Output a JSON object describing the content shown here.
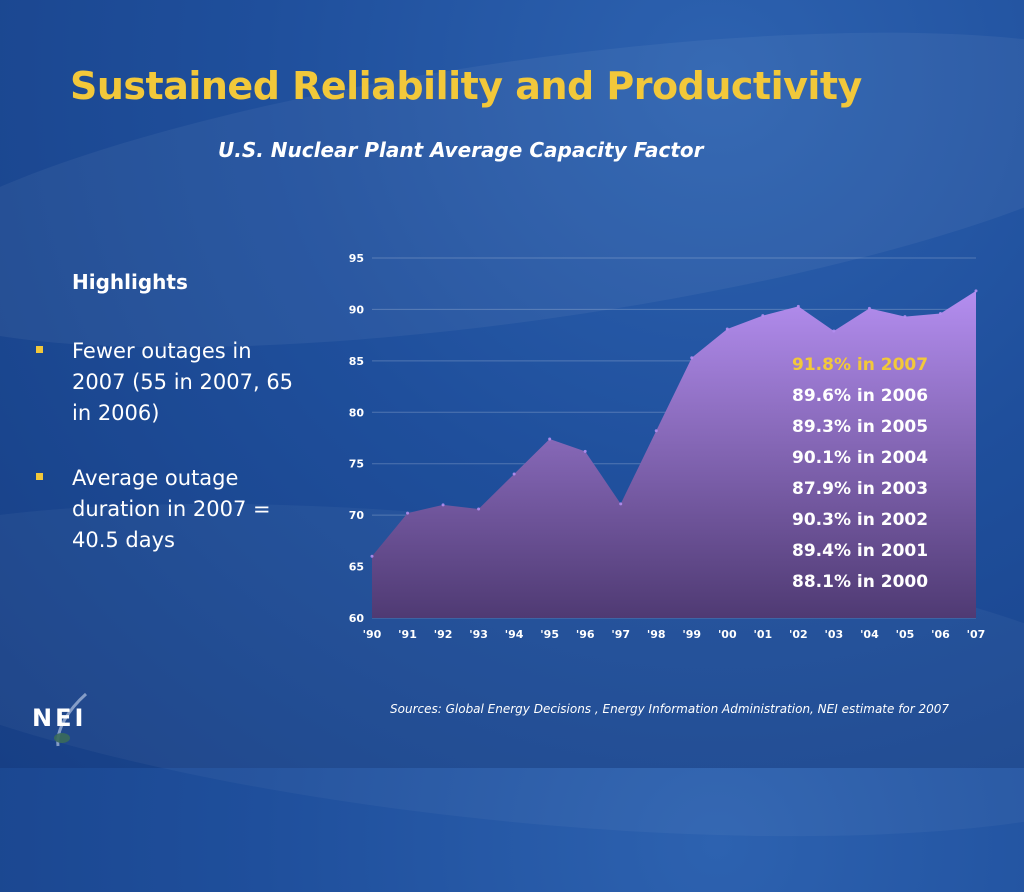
{
  "slide": {
    "title": "Sustained Reliability and Productivity",
    "subtitle": "U.S. Nuclear Plant Average Capacity Factor",
    "highlights_heading": "Highlights",
    "bullets": [
      "Fewer outages in 2007 (55 in 2007, 65 in 2006)",
      "Average outage duration in 2007 = 40.5 days"
    ],
    "callouts": [
      "91.8% in 2007",
      "89.6% in 2006",
      "89.3% in 2005",
      "90.1% in 2004",
      "87.9% in 2003",
      "90.3% in 2002",
      "89.4% in 2001",
      "88.1% in 2000"
    ],
    "source": "Sources: Global Energy Decisions , Energy Information Administration, NEI estimate for 2007",
    "logo_text": "NEI"
  },
  "colors": {
    "title": "#f2c83a",
    "area_top": "#b48ef0",
    "area_bottom": "#4f3a73",
    "highlight": "#f2c83a"
  },
  "chart_data": {
    "type": "area",
    "title": "U.S. Nuclear Plant Average Capacity Factor",
    "categories": [
      "'90",
      "'91",
      "'92",
      "'93",
      "'94",
      "'95",
      "'96",
      "'97",
      "'98",
      "'99",
      "'00",
      "'01",
      "'02",
      "'03",
      "'04",
      "'05",
      "'06",
      "'07"
    ],
    "values": [
      66.0,
      70.2,
      71.0,
      70.6,
      74.0,
      77.4,
      76.2,
      71.1,
      78.2,
      85.3,
      88.1,
      89.4,
      90.3,
      87.9,
      90.1,
      89.3,
      89.6,
      91.8
    ],
    "ylim": [
      60,
      95
    ],
    "yticks": [
      60,
      65,
      70,
      75,
      80,
      85,
      90,
      95
    ],
    "grid": true,
    "xlabel": "",
    "ylabel": ""
  }
}
